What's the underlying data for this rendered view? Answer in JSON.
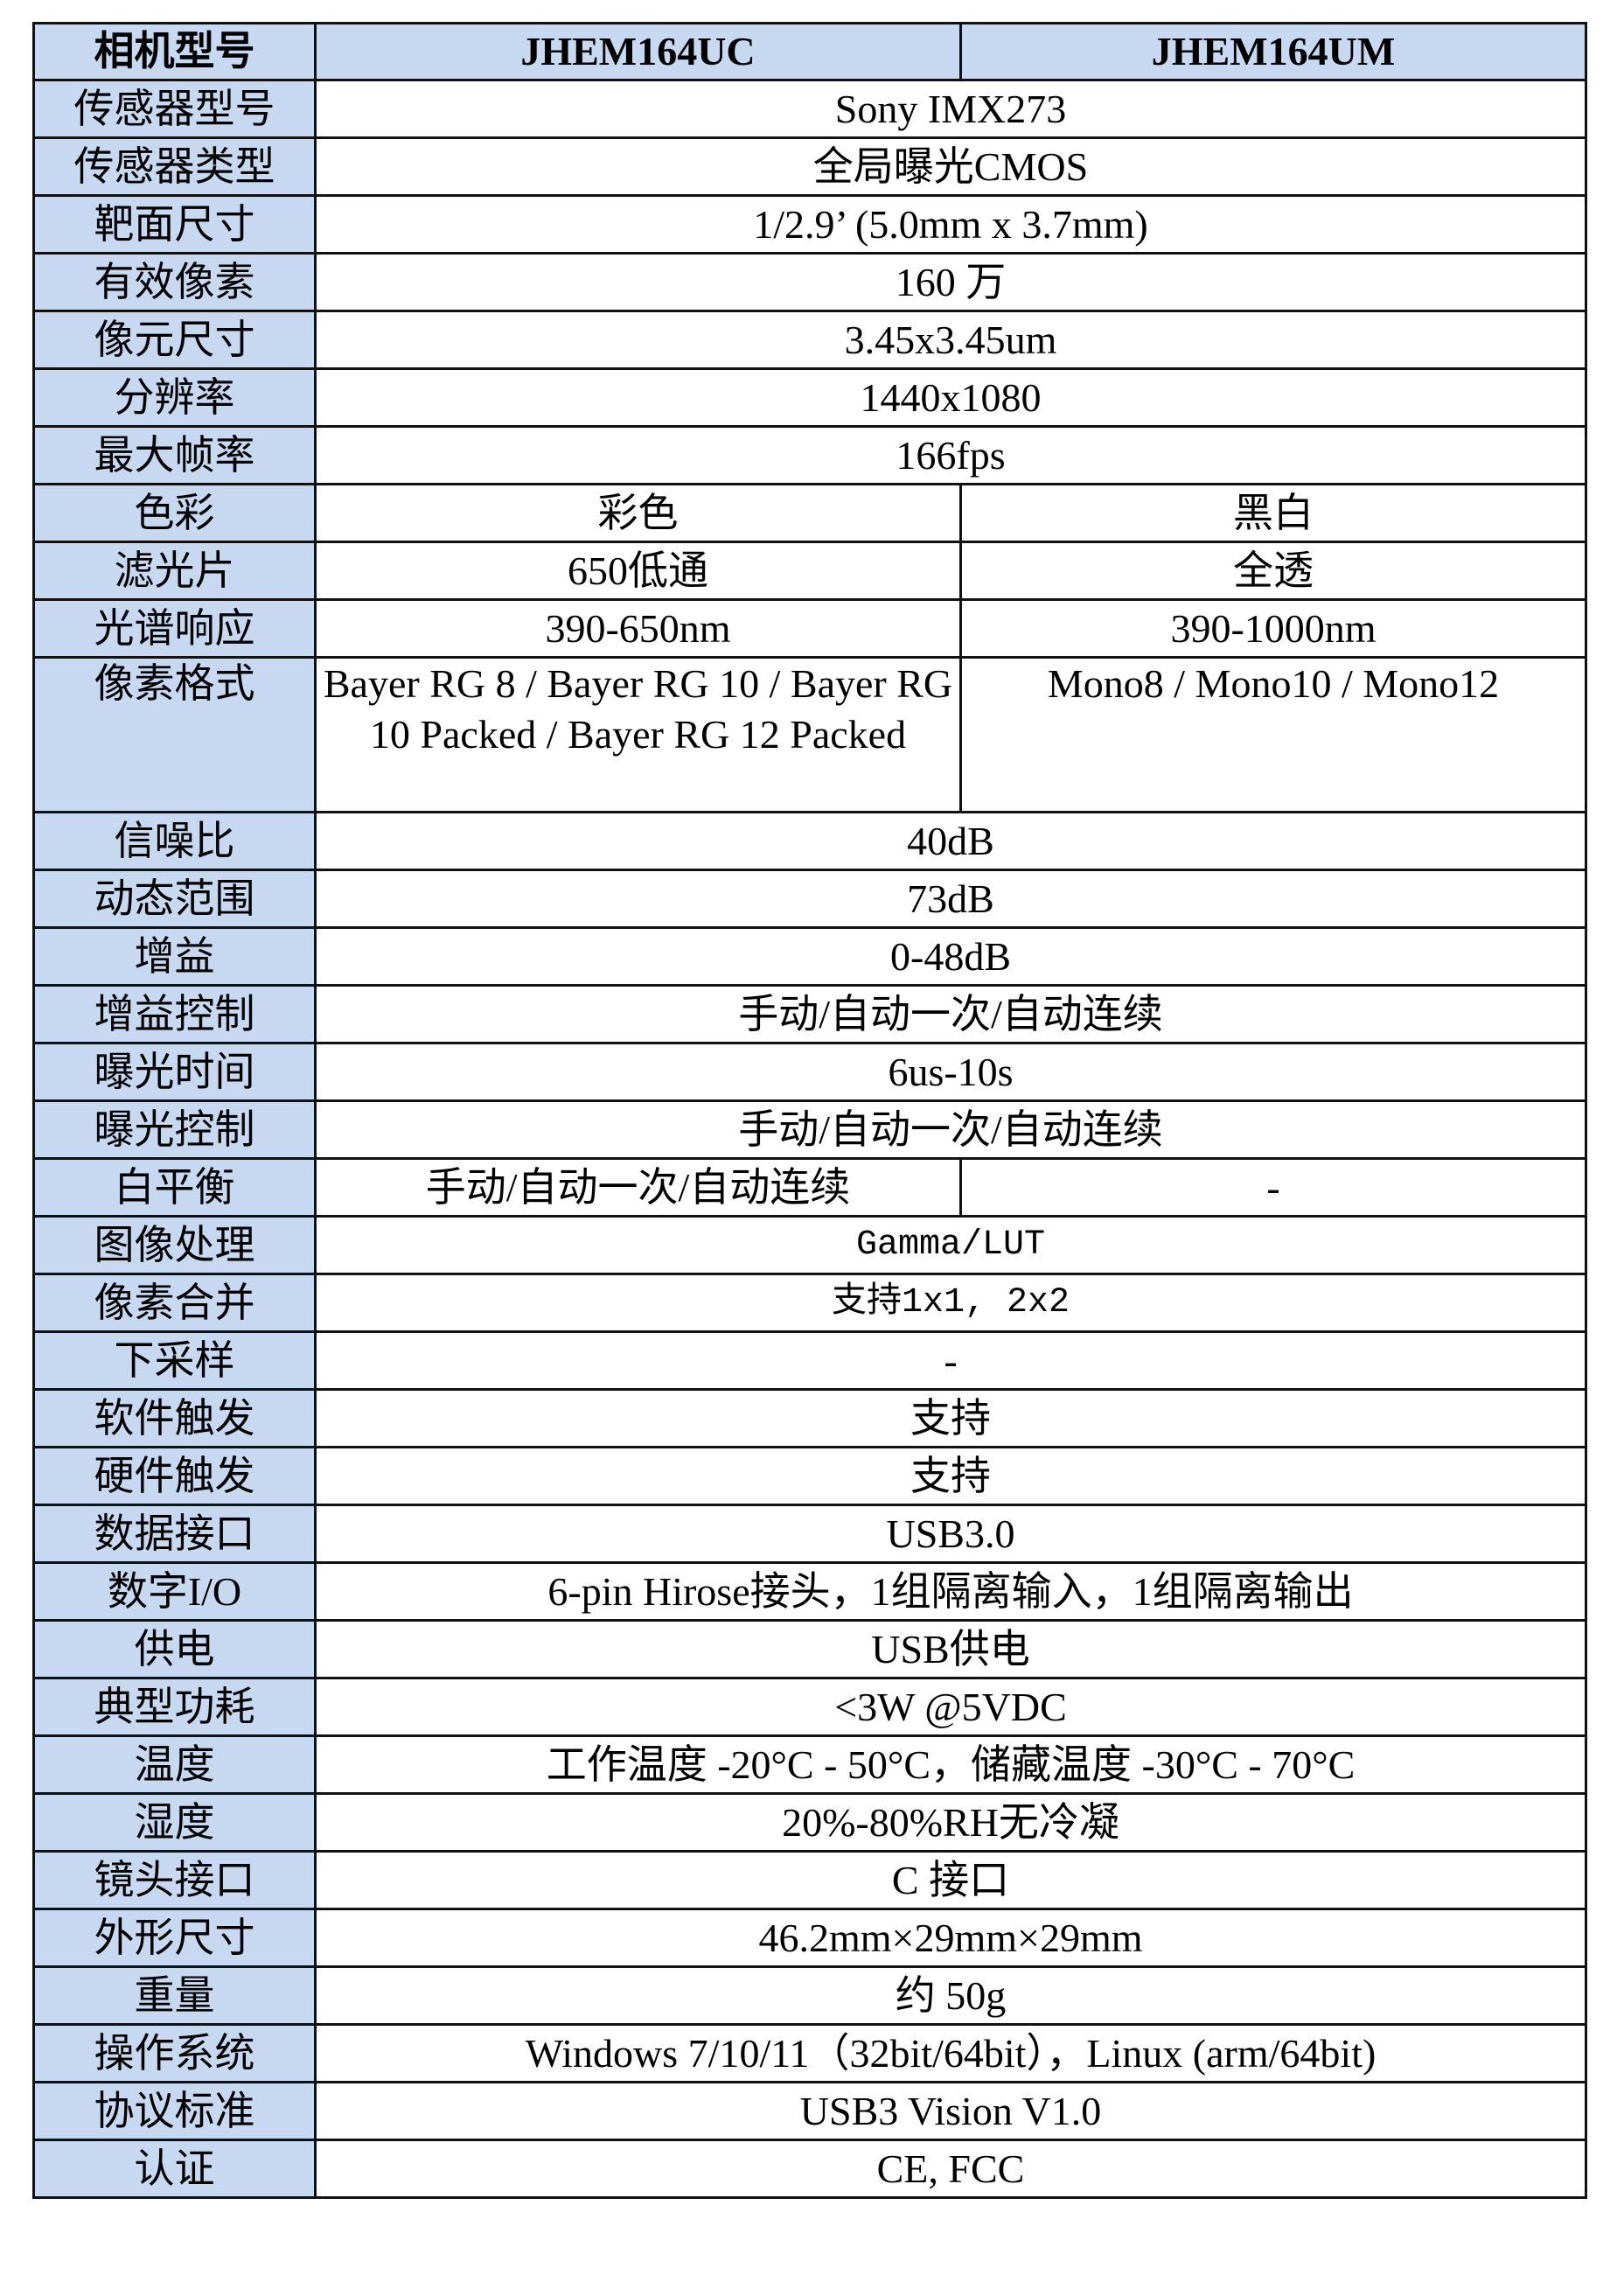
{
  "header": {
    "label": "相机型号",
    "models": [
      "JHEM164UC",
      "JHEM164UM"
    ]
  },
  "rows": [
    {
      "label": "传感器型号",
      "value": "Sony IMX273"
    },
    {
      "label": "传感器类型",
      "value": "全局曝光CMOS"
    },
    {
      "label": "靶面尺寸",
      "value": "1/2.9’ (5.0mm x 3.7mm)"
    },
    {
      "label": "有效像素",
      "value": "160 万"
    },
    {
      "label": "像元尺寸",
      "value": "3.45x3.45um"
    },
    {
      "label": "分辨率",
      "value": "1440x1080"
    },
    {
      "label": "最大帧率",
      "value": "166fps"
    },
    {
      "label": "色彩",
      "uc": "彩色",
      "um": "黑白"
    },
    {
      "label": "滤光片",
      "uc": "650低通",
      "um": "全透"
    },
    {
      "label": "光谱响应",
      "uc": "390-650nm",
      "um": "390-1000nm"
    },
    {
      "label": "像素格式",
      "uc": "Bayer RG 8 / Bayer RG 10 / Bayer RG 10 Packed / Bayer RG 12 Packed",
      "um": "Mono8 / Mono10 / Mono12"
    },
    {
      "label": "信噪比",
      "value": "40dB"
    },
    {
      "label": "动态范围",
      "value": "73dB"
    },
    {
      "label": "增益",
      "value": "0-48dB"
    },
    {
      "label": "增益控制",
      "value": "手动/自动一次/自动连续"
    },
    {
      "label": "曝光时间",
      "value": "6us-10s"
    },
    {
      "label": "曝光控制",
      "value": "手动/自动一次/自动连续"
    },
    {
      "label": "白平衡",
      "uc": "手动/自动一次/自动连续",
      "um": "-"
    },
    {
      "label": "图像处理",
      "value": "Gamma/LUT"
    },
    {
      "label": "像素合并",
      "value": "支持1x1, 2x2"
    },
    {
      "label": "下采样",
      "value": "-"
    },
    {
      "label": "软件触发",
      "value": "支持"
    },
    {
      "label": "硬件触发",
      "value": "支持"
    },
    {
      "label": "数据接口",
      "value": "USB3.0"
    },
    {
      "label": "数字I/O",
      "value": "6-pin Hirose接头，1组隔离输入，1组隔离输出"
    },
    {
      "label": "供电",
      "value": "USB供电"
    },
    {
      "label": "典型功耗",
      "value": "<3W @5VDC"
    },
    {
      "label": "温度",
      "value": "工作温度 -20°C - 50°C，储藏温度 -30°C - 70°C"
    },
    {
      "label": "湿度",
      "value": "20%-80%RH无冷凝"
    },
    {
      "label": "镜头接口",
      "value": "C 接口"
    },
    {
      "label": "外形尺寸",
      "value": "46.2mm×29mm×29mm"
    },
    {
      "label": "重量",
      "value": "约 50g"
    },
    {
      "label": "操作系统",
      "value": "Windows 7/10/11（32bit/64bit），Linux (arm/64bit)"
    },
    {
      "label": "协议标准",
      "value": "USB3 Vision V1.0"
    },
    {
      "label": "认证",
      "value": "CE, FCC"
    }
  ]
}
